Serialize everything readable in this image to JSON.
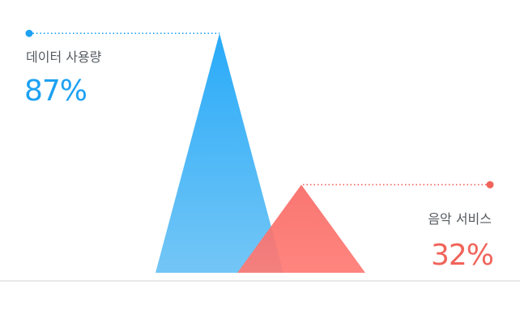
{
  "chart_data": {
    "type": "area",
    "unit": "%",
    "series": [
      {
        "name": "데이터 사용량",
        "value": 87,
        "display": "87%",
        "color": "#1da1f2",
        "color_top": "#1ea6f8",
        "color_bottom": "#6cc3f5"
      },
      {
        "name": "음악 서비스",
        "value": 32,
        "display": "32%",
        "color": "#f0645a",
        "color_top": "#f86a65",
        "color_bottom": "#ff7a74"
      }
    ],
    "ylim": [
      0,
      100
    ],
    "grid": false,
    "baseline": true
  }
}
